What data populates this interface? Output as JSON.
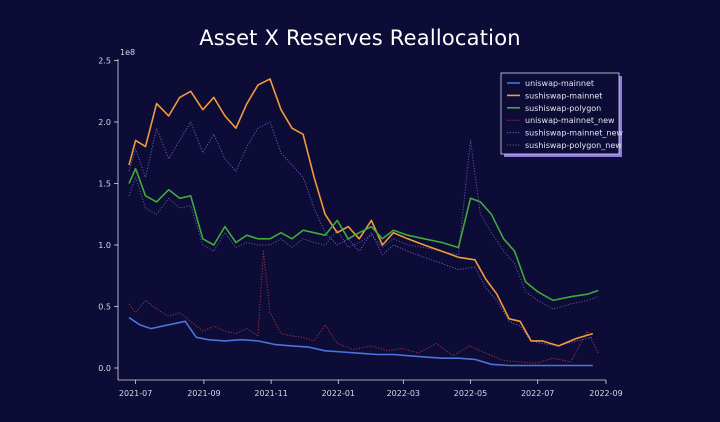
{
  "chart_data": {
    "type": "line",
    "title": "Asset X Reserves Reallocation",
    "xlabel": "",
    "ylabel": "",
    "y_scale_label": "1e8",
    "ylim": [
      0,
      2.5
    ],
    "y_ticks": [
      0.0,
      0.5,
      1.0,
      1.5,
      2.0,
      2.5
    ],
    "y_tick_labels": [
      "0.0",
      "0.5",
      "1.0",
      "1.5",
      "2.0",
      "2.5"
    ],
    "x_range": [
      "2021-06-15",
      "2022-09-01"
    ],
    "x_ticks": [
      "2021-07-01",
      "2021-09-01",
      "2021-11-01",
      "2022-01-01",
      "2022-03-01",
      "2022-05-01",
      "2022-07-01",
      "2022-09-01"
    ],
    "x_tick_labels": [
      "2021-07",
      "2021-09",
      "2021-11",
      "2022-01",
      "2022-03",
      "2022-05",
      "2022-07",
      "2022-09"
    ],
    "grid": false,
    "legend_position": "top-right",
    "series": [
      {
        "name": "uniswap-mainnet",
        "color": "#4a74d9",
        "style": "solid",
        "x": [
          "2021-06-25",
          "2021-07-05",
          "2021-07-15",
          "2021-07-25",
          "2021-08-05",
          "2021-08-15",
          "2021-08-25",
          "2021-09-05",
          "2021-09-20",
          "2021-10-05",
          "2021-10-20",
          "2021-11-05",
          "2021-11-20",
          "2021-12-05",
          "2021-12-20",
          "2022-01-05",
          "2022-01-20",
          "2022-02-05",
          "2022-02-20",
          "2022-03-05",
          "2022-03-20",
          "2022-04-05",
          "2022-04-20",
          "2022-05-05",
          "2022-05-20",
          "2022-06-05",
          "2022-06-20",
          "2022-07-05",
          "2022-07-20",
          "2022-08-05",
          "2022-08-20"
        ],
        "values": [
          0.41,
          0.35,
          0.32,
          0.34,
          0.36,
          0.38,
          0.25,
          0.23,
          0.22,
          0.23,
          0.22,
          0.19,
          0.18,
          0.17,
          0.14,
          0.13,
          0.12,
          0.11,
          0.11,
          0.1,
          0.09,
          0.08,
          0.08,
          0.07,
          0.03,
          0.02,
          0.02,
          0.02,
          0.02,
          0.02,
          0.02
        ]
      },
      {
        "name": "sushiswap-mainnet",
        "color": "#f39a3c",
        "style": "solid",
        "x": [
          "2021-06-25",
          "2021-07-01",
          "2021-07-10",
          "2021-07-20",
          "2021-07-31",
          "2021-08-10",
          "2021-08-20",
          "2021-08-31",
          "2021-09-10",
          "2021-09-20",
          "2021-09-30",
          "2021-10-10",
          "2021-10-20",
          "2021-10-31",
          "2021-11-10",
          "2021-11-20",
          "2021-11-30",
          "2021-12-10",
          "2021-12-20",
          "2021-12-31",
          "2022-01-10",
          "2022-01-20",
          "2022-01-31",
          "2022-02-10",
          "2022-02-20",
          "2022-03-05",
          "2022-03-20",
          "2022-04-05",
          "2022-04-20",
          "2022-05-05",
          "2022-05-15",
          "2022-05-25",
          "2022-06-05",
          "2022-06-15",
          "2022-06-25",
          "2022-07-05",
          "2022-07-20",
          "2022-08-05",
          "2022-08-20"
        ],
        "values": [
          1.65,
          1.85,
          1.8,
          2.15,
          2.05,
          2.2,
          2.25,
          2.1,
          2.2,
          2.05,
          1.95,
          2.15,
          2.3,
          2.35,
          2.1,
          1.95,
          1.9,
          1.55,
          1.25,
          1.1,
          1.15,
          1.05,
          1.2,
          1.0,
          1.1,
          1.05,
          1.0,
          0.95,
          0.9,
          0.88,
          0.72,
          0.6,
          0.4,
          0.38,
          0.22,
          0.22,
          0.18,
          0.24,
          0.28
        ]
      },
      {
        "name": "sushiswap-polygon",
        "color": "#3faa3a",
        "style": "solid",
        "x": [
          "2021-06-25",
          "2021-07-01",
          "2021-07-10",
          "2021-07-20",
          "2021-07-31",
          "2021-08-10",
          "2021-08-20",
          "2021-08-31",
          "2021-09-10",
          "2021-09-20",
          "2021-09-30",
          "2021-10-10",
          "2021-10-20",
          "2021-10-31",
          "2021-11-10",
          "2021-11-20",
          "2021-11-30",
          "2021-12-10",
          "2021-12-20",
          "2021-12-31",
          "2022-01-10",
          "2022-01-20",
          "2022-01-31",
          "2022-02-10",
          "2022-02-20",
          "2022-03-05",
          "2022-03-20",
          "2022-04-05",
          "2022-04-20",
          "2022-05-01",
          "2022-05-10",
          "2022-05-20",
          "2022-05-31",
          "2022-06-10",
          "2022-06-20",
          "2022-07-01",
          "2022-07-15",
          "2022-07-31",
          "2022-08-15",
          "2022-08-25"
        ],
        "values": [
          1.5,
          1.62,
          1.4,
          1.35,
          1.45,
          1.38,
          1.4,
          1.05,
          1.0,
          1.15,
          1.02,
          1.08,
          1.05,
          1.05,
          1.1,
          1.05,
          1.12,
          1.1,
          1.08,
          1.2,
          1.05,
          1.1,
          1.15,
          1.05,
          1.12,
          1.08,
          1.05,
          1.02,
          0.98,
          1.38,
          1.35,
          1.25,
          1.05,
          0.95,
          0.7,
          0.62,
          0.55,
          0.58,
          0.6,
          0.63
        ]
      },
      {
        "name": "uniswap-mainnet_new",
        "color": "#b13a45",
        "style": "dotted",
        "x": [
          "2021-06-25",
          "2021-07-01",
          "2021-07-10",
          "2021-07-20",
          "2021-07-31",
          "2021-08-10",
          "2021-08-20",
          "2021-08-31",
          "2021-09-10",
          "2021-09-20",
          "2021-09-30",
          "2021-10-10",
          "2021-10-20",
          "2021-10-25",
          "2021-10-31",
          "2021-11-10",
          "2021-11-20",
          "2021-11-30",
          "2021-12-10",
          "2021-12-20",
          "2021-12-31",
          "2022-01-15",
          "2022-01-31",
          "2022-02-15",
          "2022-02-28",
          "2022-03-15",
          "2022-03-31",
          "2022-04-15",
          "2022-04-30",
          "2022-05-15",
          "2022-05-31",
          "2022-06-15",
          "2022-06-30",
          "2022-07-15",
          "2022-07-31",
          "2022-08-15",
          "2022-08-25"
        ],
        "values": [
          0.52,
          0.45,
          0.55,
          0.48,
          0.42,
          0.45,
          0.38,
          0.3,
          0.34,
          0.3,
          0.28,
          0.32,
          0.26,
          0.95,
          0.45,
          0.28,
          0.26,
          0.25,
          0.22,
          0.35,
          0.2,
          0.15,
          0.18,
          0.14,
          0.16,
          0.12,
          0.2,
          0.1,
          0.18,
          0.12,
          0.06,
          0.05,
          0.04,
          0.08,
          0.05,
          0.3,
          0.12
        ]
      },
      {
        "name": "sushiswap-mainnet_new",
        "color": "#7a5fd0",
        "style": "dotted",
        "x": [
          "2021-06-25",
          "2021-07-01",
          "2021-07-10",
          "2021-07-20",
          "2021-07-31",
          "2021-08-10",
          "2021-08-20",
          "2021-08-31",
          "2021-09-10",
          "2021-09-20",
          "2021-09-30",
          "2021-10-10",
          "2021-10-20",
          "2021-10-31",
          "2021-11-10",
          "2021-11-20",
          "2021-11-30",
          "2021-12-10",
          "2021-12-20",
          "2021-12-31",
          "2022-01-10",
          "2022-01-20",
          "2022-01-31",
          "2022-02-10",
          "2022-02-20",
          "2022-03-05",
          "2022-03-20",
          "2022-04-05",
          "2022-04-20",
          "2022-05-05",
          "2022-05-15",
          "2022-05-25",
          "2022-06-05",
          "2022-06-15",
          "2022-06-25",
          "2022-07-05",
          "2022-07-20",
          "2022-08-05",
          "2022-08-20"
        ],
        "values": [
          1.6,
          1.78,
          1.55,
          1.95,
          1.7,
          1.85,
          2.0,
          1.75,
          1.9,
          1.7,
          1.6,
          1.8,
          1.95,
          2.0,
          1.75,
          1.65,
          1.55,
          1.3,
          1.1,
          1.0,
          1.05,
          0.95,
          1.1,
          0.92,
          1.0,
          0.95,
          0.9,
          0.85,
          0.8,
          0.82,
          0.65,
          0.55,
          0.38,
          0.34,
          0.22,
          0.2,
          0.18,
          0.22,
          0.25
        ]
      },
      {
        "name": "sushiswap-polygon_new",
        "color": "#6a58a8",
        "style": "dotted",
        "x": [
          "2021-06-25",
          "2021-07-01",
          "2021-07-10",
          "2021-07-20",
          "2021-07-31",
          "2021-08-10",
          "2021-08-20",
          "2021-08-31",
          "2021-09-10",
          "2021-09-20",
          "2021-09-30",
          "2021-10-10",
          "2021-10-20",
          "2021-10-31",
          "2021-11-10",
          "2021-11-20",
          "2021-11-30",
          "2021-12-10",
          "2021-12-20",
          "2021-12-31",
          "2022-01-10",
          "2022-01-20",
          "2022-01-31",
          "2022-02-10",
          "2022-02-20",
          "2022-03-05",
          "2022-03-20",
          "2022-04-05",
          "2022-04-20",
          "2022-05-01",
          "2022-05-10",
          "2022-05-20",
          "2022-05-31",
          "2022-06-10",
          "2022-06-20",
          "2022-07-01",
          "2022-07-15",
          "2022-07-31",
          "2022-08-15",
          "2022-08-25"
        ],
        "values": [
          1.4,
          1.55,
          1.3,
          1.25,
          1.38,
          1.3,
          1.32,
          1.0,
          0.95,
          1.1,
          0.98,
          1.02,
          1.0,
          1.0,
          1.05,
          0.98,
          1.05,
          1.02,
          1.0,
          1.12,
          0.98,
          1.02,
          1.08,
          0.98,
          1.05,
          1.0,
          0.98,
          0.95,
          0.92,
          1.85,
          1.25,
          1.1,
          0.95,
          0.85,
          0.62,
          0.55,
          0.48,
          0.52,
          0.55,
          0.58
        ]
      }
    ]
  }
}
